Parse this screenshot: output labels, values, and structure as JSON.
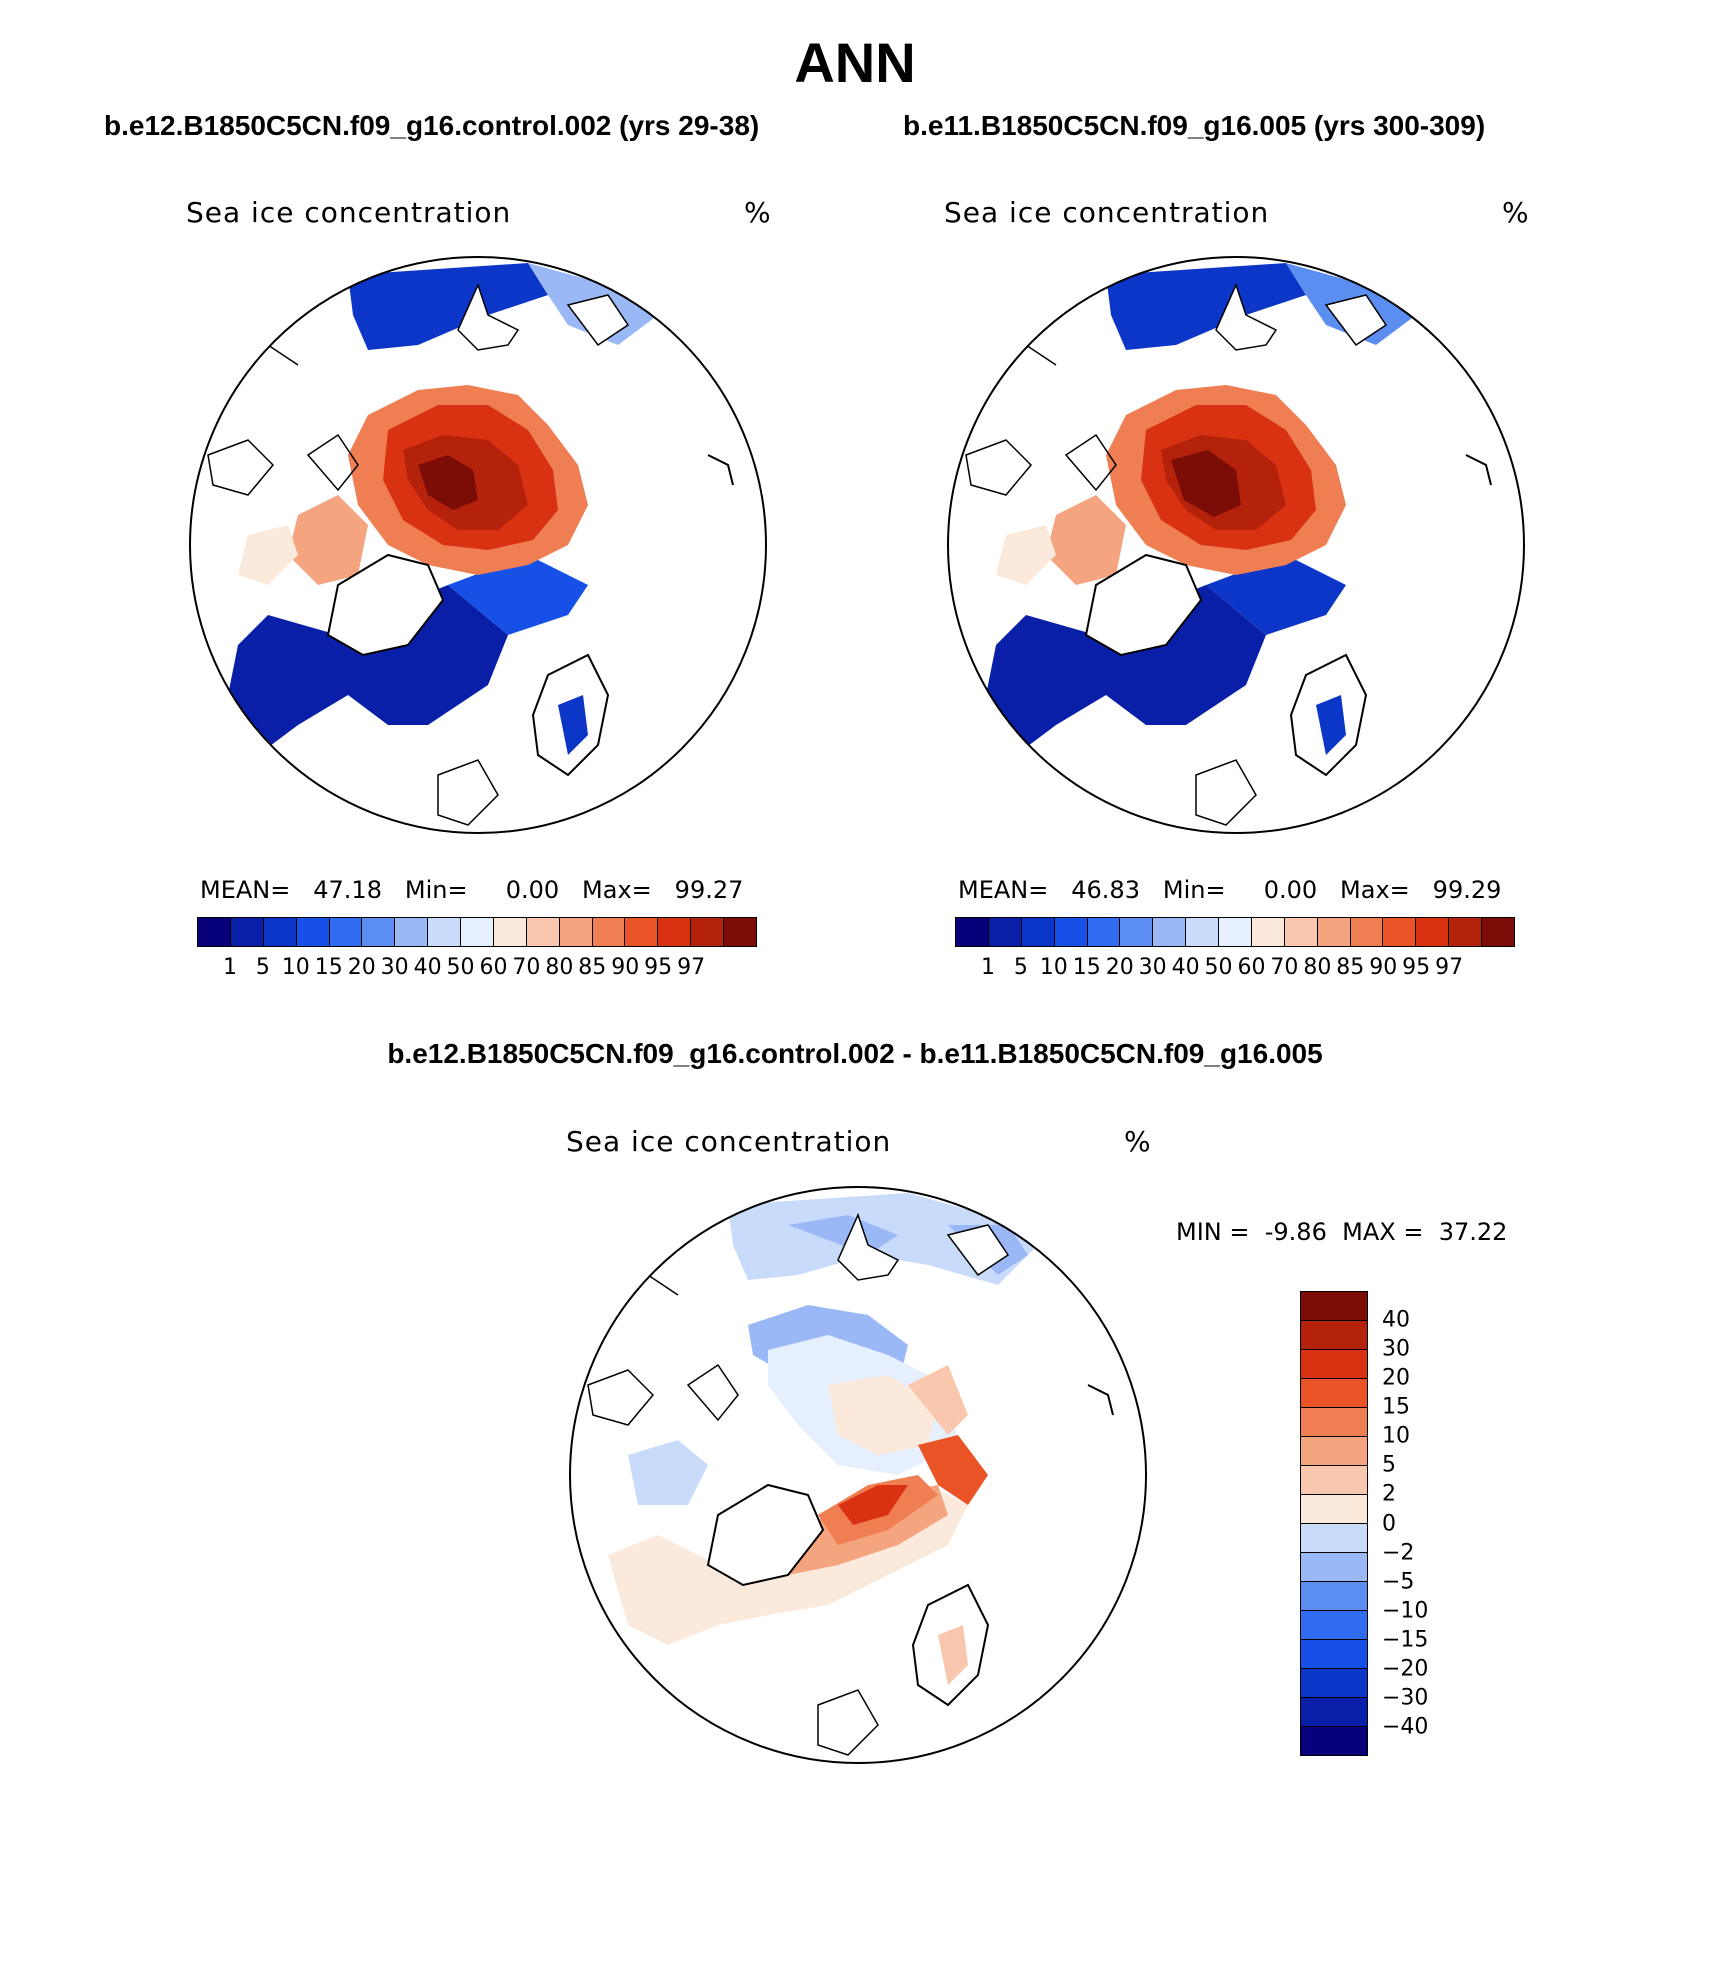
{
  "figure": {
    "season": "ANN",
    "diff_title": "b.e12.B1850C5CN.f09_g16.control.002 - b.e11.B1850C5CN.f09_g16.005"
  },
  "colors": {
    "scale": [
      "#08007a",
      "#0a1fa8",
      "#0b36c8",
      "#1650e6",
      "#2f6cf0",
      "#5c8ef2",
      "#9ab7f6",
      "#c9dbfa",
      "#e6effd",
      "#fbe9dc",
      "#f8c7ad",
      "#f4a47f",
      "#ef7e52",
      "#e95326",
      "#d83213",
      "#b4220c",
      "#7b0c06"
    ],
    "diff_scale": [
      "#08007a",
      "#0a1fa8",
      "#0b36c8",
      "#1650e6",
      "#2f6cf0",
      "#5c8ef2",
      "#9ab7f6",
      "#c9dbfa",
      "#fbe9dc",
      "#f8c7ad",
      "#f4a47f",
      "#ef7e52",
      "#e95326",
      "#d83213",
      "#b4220c",
      "#7b0c06"
    ]
  },
  "panels": [
    {
      "case_title": "b.e12.B1850C5CN.f09_g16.control.002 (yrs 29-38)",
      "variable": "Sea ice concentration",
      "units": "%",
      "mean_label": "MEAN=",
      "mean": "47.18",
      "min_label": "Min=",
      "min": "0.00",
      "max_label": "Max=",
      "max": "99.27",
      "colorbar_ticks": [
        "1",
        "5",
        "10",
        "15",
        "20",
        "30",
        "40",
        "50",
        "60",
        "70",
        "80",
        "85",
        "90",
        "95",
        "97"
      ]
    },
    {
      "case_title": "b.e11.B1850C5CN.f09_g16.005 (yrs 300-309)",
      "variable": "Sea ice concentration",
      "units": "%",
      "mean_label": "MEAN=",
      "mean": "46.83",
      "min_label": "Min=",
      "min": "0.00",
      "max_label": "Max=",
      "max": "99.29",
      "colorbar_ticks": [
        "1",
        "5",
        "10",
        "15",
        "20",
        "30",
        "40",
        "50",
        "60",
        "70",
        "80",
        "85",
        "90",
        "95",
        "97"
      ]
    }
  ],
  "diff_panel": {
    "variable": "Sea ice concentration",
    "units": "%",
    "min_label": "MIN =",
    "min": "-9.86",
    "max_label": "MAX =",
    "max": "37.22",
    "colorbar_ticks": [
      "40",
      "30",
      "20",
      "15",
      "10",
      "5",
      "2",
      "0",
      "−2",
      "−5",
      "−10",
      "−15",
      "−20",
      "−30",
      "−40"
    ]
  }
}
